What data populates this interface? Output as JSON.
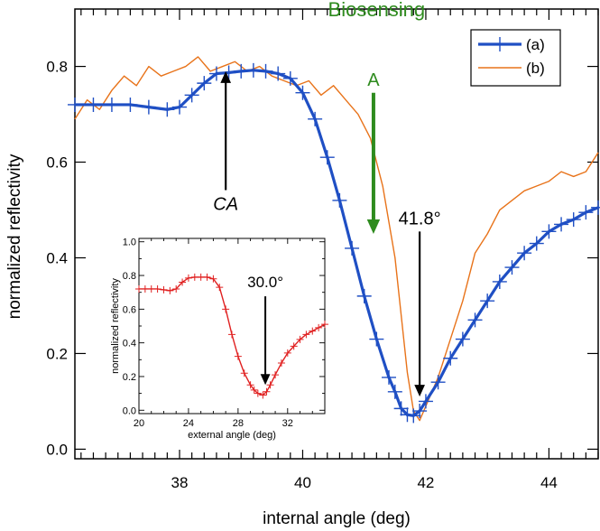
{
  "chart_data": [
    {
      "type": "line",
      "title": "",
      "xlabel": "internal angle (deg)",
      "ylabel": "normalized reflectivity",
      "xlim": [
        36.3,
        44.8
      ],
      "ylim": [
        -0.02,
        0.92
      ],
      "x_ticks": [
        38,
        40,
        42,
        44
      ],
      "x_tick_labels": [
        "38",
        "40",
        "42",
        "44"
      ],
      "y_ticks": [
        0.0,
        0.2,
        0.4,
        0.6,
        0.8
      ],
      "y_tick_labels": [
        "0.0",
        "0.2",
        "0.4",
        "0.6",
        "0.8"
      ],
      "grid": false,
      "legend": {
        "position": "top-right",
        "entries": [
          "(a)",
          "(b)"
        ]
      },
      "series": [
        {
          "name": "(a)",
          "color": "#1f4fc4",
          "marker": "+",
          "x": [
            36.3,
            36.6,
            36.9,
            37.2,
            37.5,
            37.8,
            38.0,
            38.2,
            38.4,
            38.6,
            38.8,
            39.0,
            39.2,
            39.4,
            39.6,
            39.8,
            40.0,
            40.2,
            40.4,
            40.6,
            40.8,
            41.0,
            41.2,
            41.4,
            41.5,
            41.6,
            41.7,
            41.8,
            41.9,
            42.0,
            42.2,
            42.4,
            42.6,
            42.8,
            43.0,
            43.2,
            43.4,
            43.6,
            43.8,
            44.0,
            44.2,
            44.4,
            44.6,
            44.8
          ],
          "y": [
            0.72,
            0.72,
            0.72,
            0.72,
            0.715,
            0.71,
            0.715,
            0.74,
            0.765,
            0.785,
            0.787,
            0.79,
            0.792,
            0.79,
            0.785,
            0.775,
            0.745,
            0.69,
            0.61,
            0.52,
            0.42,
            0.32,
            0.23,
            0.15,
            0.12,
            0.085,
            0.072,
            0.07,
            0.08,
            0.1,
            0.14,
            0.19,
            0.23,
            0.27,
            0.31,
            0.35,
            0.38,
            0.41,
            0.43,
            0.455,
            0.47,
            0.48,
            0.495,
            0.505
          ]
        },
        {
          "name": "(b)",
          "color": "#e8731a",
          "x": [
            36.3,
            36.5,
            36.7,
            36.9,
            37.1,
            37.3,
            37.5,
            37.7,
            37.9,
            38.1,
            38.3,
            38.5,
            38.7,
            38.9,
            39.1,
            39.3,
            39.5,
            39.7,
            39.9,
            40.1,
            40.3,
            40.5,
            40.7,
            40.9,
            41.1,
            41.3,
            41.5,
            41.6,
            41.7,
            41.8,
            41.9,
            42.0,
            42.2,
            42.4,
            42.6,
            42.8,
            43.0,
            43.2,
            43.4,
            43.6,
            43.8,
            44.0,
            44.2,
            44.4,
            44.6,
            44.8
          ],
          "y": [
            0.69,
            0.73,
            0.71,
            0.75,
            0.78,
            0.76,
            0.8,
            0.78,
            0.79,
            0.8,
            0.82,
            0.79,
            0.8,
            0.81,
            0.79,
            0.8,
            0.78,
            0.77,
            0.76,
            0.77,
            0.74,
            0.76,
            0.73,
            0.7,
            0.65,
            0.55,
            0.4,
            0.28,
            0.16,
            0.08,
            0.06,
            0.09,
            0.15,
            0.23,
            0.31,
            0.41,
            0.45,
            0.5,
            0.52,
            0.54,
            0.55,
            0.56,
            0.58,
            0.57,
            0.58,
            0.62
          ]
        }
      ],
      "annotations": [
        {
          "text": "Biosensing",
          "x": 41.2,
          "y": 0.905,
          "color": "#2e8b1e"
        },
        {
          "text": "A",
          "x": 41.15,
          "y": 0.76,
          "color": "#2e8b1e",
          "arrow_to": [
            41.15,
            0.45
          ]
        },
        {
          "text": "CA",
          "x": 38.75,
          "y": 0.5,
          "color": "#000000",
          "arrow_to": [
            38.75,
            0.79
          ]
        },
        {
          "text": "41.8°",
          "x": 41.9,
          "y": 0.47,
          "color": "#000000",
          "arrow_to": [
            41.9,
            0.11
          ]
        }
      ]
    },
    {
      "type": "line",
      "title": "",
      "xlabel": "external angle (deg)",
      "ylabel": "normalized reflectivity",
      "xlim": [
        20,
        35
      ],
      "ylim": [
        -0.02,
        1.02
      ],
      "x_ticks": [
        20,
        24,
        28,
        32
      ],
      "x_tick_labels": [
        "20",
        "24",
        "28",
        "32"
      ],
      "y_ticks": [
        0.0,
        0.2,
        0.4,
        0.6,
        0.8,
        1.0
      ],
      "y_tick_labels": [
        "0.0",
        "0.2",
        "0.4",
        "0.6",
        "0.8",
        "1.0"
      ],
      "grid": false,
      "series": [
        {
          "color": "#e02020",
          "marker": "+",
          "x": [
            20.0,
            20.5,
            21.0,
            21.5,
            22.0,
            22.5,
            23.0,
            23.5,
            24.0,
            24.5,
            25.0,
            25.5,
            26.0,
            26.5,
            27.0,
            27.5,
            28.0,
            28.5,
            29.0,
            29.3,
            29.6,
            30.0,
            30.3,
            30.6,
            31.0,
            31.5,
            32.0,
            32.5,
            33.0,
            33.5,
            34.0,
            34.5,
            35.0
          ],
          "y": [
            0.72,
            0.72,
            0.72,
            0.72,
            0.715,
            0.71,
            0.72,
            0.76,
            0.785,
            0.79,
            0.79,
            0.79,
            0.78,
            0.73,
            0.6,
            0.45,
            0.32,
            0.22,
            0.15,
            0.12,
            0.1,
            0.09,
            0.11,
            0.15,
            0.21,
            0.28,
            0.34,
            0.38,
            0.42,
            0.45,
            0.47,
            0.49,
            0.51
          ]
        }
      ],
      "annotations": [
        {
          "text": "30.0°",
          "x": 30.2,
          "y": 0.73,
          "color": "#000000",
          "arrow_to": [
            30.2,
            0.15
          ]
        }
      ]
    }
  ]
}
